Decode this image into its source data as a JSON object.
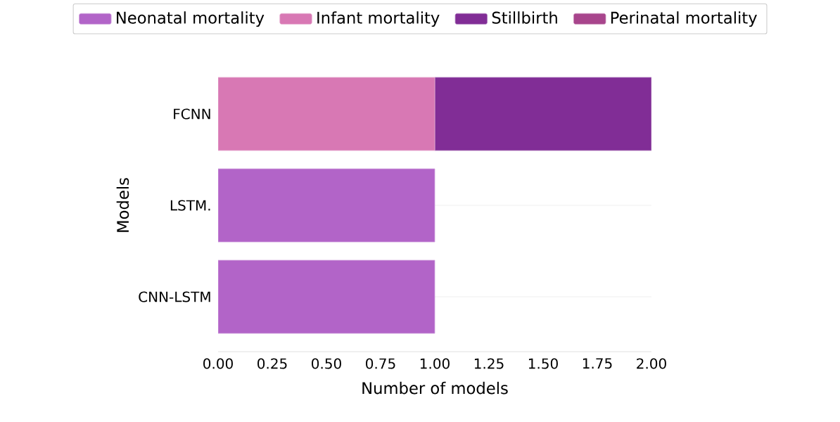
{
  "chart_data": {
    "type": "bar",
    "orientation": "horizontal",
    "stacked": true,
    "categories": [
      "FCNN",
      "LSTM.",
      "CNN-LSTM"
    ],
    "series": [
      {
        "name": "Neonatal mortality",
        "color": "#b264c8",
        "values": [
          0,
          1,
          1
        ]
      },
      {
        "name": "Infant mortality",
        "color": "#d878b4",
        "values": [
          1,
          0,
          0
        ]
      },
      {
        "name": "Stillbirth",
        "color": "#812d96",
        "values": [
          1,
          0,
          0
        ]
      },
      {
        "name": "Perinatal mortality",
        "color": "#a8458c",
        "values": [
          0,
          0,
          0
        ]
      }
    ],
    "xlabel": "Number of models",
    "ylabel": "Models",
    "xlim": [
      0,
      2
    ],
    "xticks": [
      {
        "value": 0,
        "label": "0.00"
      },
      {
        "value": 0.25,
        "label": "0.25"
      },
      {
        "value": 0.5,
        "label": "0.50"
      },
      {
        "value": 0.75,
        "label": "0.75"
      },
      {
        "value": 1,
        "label": "1.00"
      },
      {
        "value": 1.25,
        "label": "1.25"
      },
      {
        "value": 1.5,
        "label": "1.50"
      },
      {
        "value": 1.75,
        "label": "1.75"
      },
      {
        "value": 2,
        "label": "2.00"
      }
    ],
    "grid": "y",
    "legend": "top"
  }
}
